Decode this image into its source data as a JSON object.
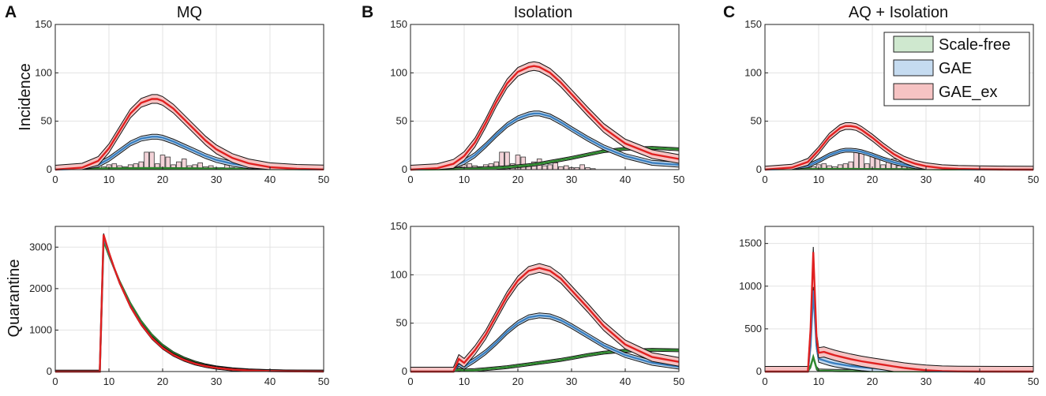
{
  "figure": {
    "panel_letters": [
      "A",
      "B",
      "C"
    ],
    "column_titles": [
      "MQ",
      "Isolation",
      "AQ + Isolation"
    ],
    "row_labels": [
      "Incidence",
      "Quarantine"
    ]
  },
  "colors": {
    "scale_free": "#2e8b2e",
    "scale_free_band": "#cfe8cf",
    "gae": "#3a7fc0",
    "gae_band": "#c5dbf0",
    "gae_ex": "#e02020",
    "gae_ex_band": "#f6c3c3",
    "hist_fill": "#f3d3d8",
    "envelope": "#111111"
  },
  "legend": {
    "entries": [
      "Scale-free",
      "GAE",
      "GAE_ex"
    ],
    "location": "top-right of panel C incidence"
  },
  "chart_data": [
    {
      "id": "A-incidence",
      "type": "line",
      "title": "MQ",
      "panel_label": "A",
      "ylabel": "Incidence",
      "xlim": [
        0,
        50
      ],
      "ylim": [
        0,
        150
      ],
      "xticks": [
        0,
        10,
        20,
        30,
        40,
        50
      ],
      "yticks": [
        0,
        50,
        100,
        150
      ],
      "grid": true,
      "x": [
        0,
        5,
        8,
        10,
        12,
        14,
        16,
        18,
        19,
        20,
        22,
        24,
        26,
        28,
        30,
        33,
        36,
        40,
        45,
        50
      ],
      "series": [
        {
          "name": "Scale-free",
          "values": [
            0.5,
            0.8,
            1,
            1.2,
            1.3,
            1.4,
            1.5,
            1.5,
            1.5,
            1.5,
            1.4,
            1.3,
            1.2,
            1.1,
            1,
            0.9,
            0.7,
            0.5,
            0.3,
            0.2
          ],
          "band": 0.6
        },
        {
          "name": "GAE",
          "values": [
            0,
            1,
            5,
            11,
            19,
            27,
            32,
            34,
            34,
            33,
            29,
            24,
            19,
            14,
            10,
            6,
            3.5,
            1.5,
            0.5,
            0.2
          ],
          "band": 2.5
        },
        {
          "name": "GAE_ex",
          "values": [
            0,
            2,
            9,
            22,
            40,
            58,
            69,
            73,
            73,
            71,
            63,
            52,
            41,
            30,
            21,
            12,
            6.5,
            2.5,
            0.8,
            0.2
          ],
          "band": 4.5
        }
      ],
      "histogram": [
        {
          "x": 6,
          "v": 1
        },
        {
          "x": 7,
          "v": 1
        },
        {
          "x": 8,
          "v": 2
        },
        {
          "x": 9,
          "v": 3
        },
        {
          "x": 10,
          "v": 5
        },
        {
          "x": 11,
          "v": 6
        },
        {
          "x": 12,
          "v": 4
        },
        {
          "x": 13,
          "v": 3
        },
        {
          "x": 14,
          "v": 5
        },
        {
          "x": 15,
          "v": 6
        },
        {
          "x": 16,
          "v": 8
        },
        {
          "x": 17,
          "v": 18
        },
        {
          "x": 18,
          "v": 18
        },
        {
          "x": 19,
          "v": 6
        },
        {
          "x": 20,
          "v": 15
        },
        {
          "x": 21,
          "v": 13
        },
        {
          "x": 22,
          "v": 5
        },
        {
          "x": 23,
          "v": 8
        },
        {
          "x": 24,
          "v": 11
        },
        {
          "x": 25,
          "v": 4
        },
        {
          "x": 26,
          "v": 5
        },
        {
          "x": 27,
          "v": 7
        },
        {
          "x": 28,
          "v": 3
        },
        {
          "x": 29,
          "v": 4
        },
        {
          "x": 30,
          "v": 2
        },
        {
          "x": 31,
          "v": 2
        },
        {
          "x": 32,
          "v": 5
        },
        {
          "x": 33,
          "v": 2
        },
        {
          "x": 34,
          "v": 1
        }
      ]
    },
    {
      "id": "B-incidence",
      "type": "line",
      "title": "Isolation",
      "panel_label": "B",
      "ylabel": "",
      "xlim": [
        0,
        50
      ],
      "ylim": [
        0,
        150
      ],
      "xticks": [
        0,
        10,
        20,
        30,
        40,
        50
      ],
      "yticks": [
        0,
        50,
        100,
        150
      ],
      "grid": true,
      "x": [
        0,
        5,
        8,
        10,
        12,
        14,
        16,
        18,
        20,
        22,
        23,
        24,
        26,
        28,
        30,
        33,
        36,
        40,
        45,
        50
      ],
      "series": [
        {
          "name": "Scale-free",
          "values": [
            0,
            0.2,
            0.4,
            0.6,
            0.9,
            1.3,
            1.8,
            2.5,
            3.5,
            4.5,
            5.2,
            6,
            8,
            10,
            12,
            15.5,
            19,
            21.5,
            22.5,
            21
          ],
          "band": 1.5
        },
        {
          "name": "GAE",
          "values": [
            0,
            1,
            4,
            8,
            15,
            25,
            36,
            46,
            53,
            57,
            58,
            58,
            55,
            49,
            42,
            32,
            23,
            14,
            7,
            5
          ],
          "band": 2.5
        },
        {
          "name": "GAE_ex",
          "values": [
            0,
            1.5,
            6,
            14,
            28,
            48,
            70,
            89,
            101,
            106,
            107,
            106,
            100,
            90,
            78,
            60,
            43,
            27,
            16,
            11
          ],
          "band": 4.5
        }
      ],
      "histogram": [
        {
          "x": 6,
          "v": 1
        },
        {
          "x": 7,
          "v": 1
        },
        {
          "x": 8,
          "v": 2
        },
        {
          "x": 9,
          "v": 3
        },
        {
          "x": 10,
          "v": 5
        },
        {
          "x": 11,
          "v": 6
        },
        {
          "x": 12,
          "v": 4
        },
        {
          "x": 13,
          "v": 3
        },
        {
          "x": 14,
          "v": 5
        },
        {
          "x": 15,
          "v": 6
        },
        {
          "x": 16,
          "v": 8
        },
        {
          "x": 17,
          "v": 18
        },
        {
          "x": 18,
          "v": 18
        },
        {
          "x": 19,
          "v": 6
        },
        {
          "x": 20,
          "v": 15
        },
        {
          "x": 21,
          "v": 13
        },
        {
          "x": 22,
          "v": 5
        },
        {
          "x": 23,
          "v": 8
        },
        {
          "x": 24,
          "v": 11
        },
        {
          "x": 25,
          "v": 4
        },
        {
          "x": 26,
          "v": 5
        },
        {
          "x": 27,
          "v": 7
        },
        {
          "x": 28,
          "v": 3
        },
        {
          "x": 29,
          "v": 4
        },
        {
          "x": 30,
          "v": 2
        },
        {
          "x": 31,
          "v": 2
        },
        {
          "x": 32,
          "v": 5
        },
        {
          "x": 33,
          "v": 2
        },
        {
          "x": 34,
          "v": 1
        }
      ]
    },
    {
      "id": "C-incidence",
      "type": "line",
      "title": "AQ + Isolation",
      "panel_label": "C",
      "ylabel": "",
      "xlim": [
        0,
        50
      ],
      "ylim": [
        0,
        150
      ],
      "xticks": [
        0,
        10,
        20,
        30,
        40,
        50
      ],
      "yticks": [
        0,
        50,
        100,
        150
      ],
      "grid": true,
      "legend": true,
      "x": [
        0,
        5,
        8,
        10,
        12,
        14,
        15,
        16,
        17,
        18,
        20,
        22,
        24,
        26,
        28,
        30,
        33,
        36,
        40,
        45,
        50
      ],
      "series": [
        {
          "name": "Scale-free",
          "values": [
            0.3,
            0.5,
            0.6,
            0.7,
            0.7,
            0.7,
            0.7,
            0.7,
            0.7,
            0.6,
            0.6,
            0.5,
            0.5,
            0.4,
            0.3,
            0.3,
            0.2,
            0.2,
            0.1,
            0.1,
            0.1
          ],
          "band": 0.5
        },
        {
          "name": "GAE",
          "values": [
            0,
            1,
            4,
            9,
            15,
            19,
            20,
            20,
            19.5,
            18.5,
            15,
            11,
            7.5,
            5,
            3,
            2,
            1,
            0.5,
            0.2,
            0.1,
            0
          ],
          "band": 2
        },
        {
          "name": "GAE_ex",
          "values": [
            0,
            2,
            8,
            20,
            34,
            43,
            45,
            45,
            44,
            41,
            33,
            24,
            16,
            10,
            6,
            3.5,
            1.5,
            0.7,
            0.3,
            0.1,
            0
          ],
          "band": 3.5
        }
      ],
      "histogram": [
        {
          "x": 6,
          "v": 1
        },
        {
          "x": 7,
          "v": 1
        },
        {
          "x": 8,
          "v": 2
        },
        {
          "x": 9,
          "v": 3
        },
        {
          "x": 10,
          "v": 5
        },
        {
          "x": 11,
          "v": 6
        },
        {
          "x": 12,
          "v": 4
        },
        {
          "x": 13,
          "v": 3
        },
        {
          "x": 14,
          "v": 5
        },
        {
          "x": 15,
          "v": 6
        },
        {
          "x": 16,
          "v": 8
        },
        {
          "x": 17,
          "v": 18
        },
        {
          "x": 18,
          "v": 18
        },
        {
          "x": 19,
          "v": 6
        },
        {
          "x": 20,
          "v": 15
        },
        {
          "x": 21,
          "v": 13
        },
        {
          "x": 22,
          "v": 5
        },
        {
          "x": 23,
          "v": 8
        },
        {
          "x": 24,
          "v": 11
        },
        {
          "x": 25,
          "v": 4
        },
        {
          "x": 26,
          "v": 5
        },
        {
          "x": 27,
          "v": 7
        },
        {
          "x": 28,
          "v": 3
        },
        {
          "x": 29,
          "v": 4
        },
        {
          "x": 30,
          "v": 2
        },
        {
          "x": 31,
          "v": 2
        },
        {
          "x": 32,
          "v": 5
        },
        {
          "x": 33,
          "v": 2
        },
        {
          "x": 34,
          "v": 1
        }
      ]
    },
    {
      "id": "A-quarantine",
      "type": "line",
      "title": "",
      "panel_label": "",
      "ylabel": "Quarantine",
      "xlim": [
        0,
        50
      ],
      "ylim": [
        0,
        3500
      ],
      "xticks": [
        0,
        10,
        20,
        30,
        40,
        50
      ],
      "yticks": [
        0,
        1000,
        2000,
        3000
      ],
      "grid": true,
      "x": [
        0,
        8,
        8.3,
        9,
        10,
        11,
        12,
        14,
        16,
        18,
        20,
        22,
        24,
        26,
        28,
        30,
        33,
        36,
        40,
        45,
        50
      ],
      "series": [
        {
          "name": "Scale-free",
          "values": [
            0,
            0,
            0,
            3150,
            2800,
            2480,
            2170,
            1640,
            1210,
            880,
            630,
            450,
            320,
            225,
            155,
            105,
            60,
            35,
            15,
            5,
            2
          ],
          "band": 30
        },
        {
          "name": "GAE",
          "values": [
            0,
            0,
            0,
            3250,
            2850,
            2480,
            2140,
            1580,
            1150,
            820,
            580,
            410,
            285,
            195,
            135,
            90,
            50,
            28,
            12,
            4,
            1
          ],
          "band": 30
        },
        {
          "name": "GAE_ex",
          "values": [
            0,
            0,
            0,
            3300,
            2870,
            2490,
            2140,
            1570,
            1140,
            810,
            570,
            400,
            280,
            190,
            130,
            88,
            48,
            26,
            11,
            4,
            1
          ],
          "band": 30
        }
      ]
    },
    {
      "id": "B-quarantine",
      "type": "line",
      "title": "",
      "panel_label": "",
      "ylabel": "",
      "xlim": [
        0,
        50
      ],
      "ylim": [
        0,
        150
      ],
      "xticks": [
        0,
        10,
        20,
        30,
        40,
        50
      ],
      "yticks": [
        0,
        50,
        100,
        150
      ],
      "grid": true,
      "x": [
        0,
        8,
        9,
        10,
        12,
        14,
        16,
        18,
        20,
        22,
        24,
        26,
        28,
        30,
        33,
        36,
        40,
        45,
        50
      ],
      "series": [
        {
          "name": "Scale-free",
          "values": [
            0,
            0,
            2,
            1,
            1.5,
            2.5,
            3.5,
            4.5,
            6,
            7.5,
            9,
            10.5,
            12,
            14,
            17,
            19.5,
            21.5,
            22.5,
            22
          ],
          "band": 1.5
        },
        {
          "name": "GAE",
          "values": [
            0,
            0,
            8,
            5,
            12,
            20,
            30,
            41,
            50,
            56,
            58,
            57,
            53,
            47,
            37,
            27,
            17,
            9,
            5
          ],
          "band": 2.5
        },
        {
          "name": "GAE_ex",
          "values": [
            0,
            0,
            13,
            9,
            22,
            38,
            58,
            78,
            94,
            104,
            107,
            104,
            96,
            84,
            66,
            47,
            28,
            15,
            10
          ],
          "band": 4.5
        }
      ]
    },
    {
      "id": "C-quarantine",
      "type": "line",
      "title": "",
      "panel_label": "",
      "ylabel": "",
      "xlim": [
        0,
        50
      ],
      "ylim": [
        0,
        1700
      ],
      "xticks": [
        0,
        10,
        20,
        30,
        40,
        50
      ],
      "yticks": [
        0,
        500,
        1000,
        1500
      ],
      "grid": true,
      "x": [
        0,
        8,
        8.5,
        9,
        9.6,
        10,
        11,
        12,
        13,
        14,
        15,
        16,
        18,
        20,
        22,
        24,
        26,
        28,
        30,
        33,
        36,
        40,
        45,
        50
      ],
      "series": [
        {
          "name": "Scale-free",
          "values": [
            0,
            0,
            60,
            170,
            40,
            10,
            8,
            7,
            6,
            5,
            5,
            4,
            3,
            3,
            2,
            2,
            2,
            2,
            1,
            1,
            1,
            0,
            0,
            0
          ],
          "band": 20
        },
        {
          "name": "GAE",
          "values": [
            0,
            0,
            300,
            950,
            300,
            150,
            130,
            110,
            95,
            85,
            75,
            65,
            50,
            40,
            30,
            20,
            14,
            9,
            5,
            2,
            1,
            0,
            0,
            0
          ],
          "band": 40
        },
        {
          "name": "GAE_ex",
          "values": [
            0,
            0,
            500,
            1400,
            400,
            220,
            230,
            210,
            190,
            175,
            160,
            145,
            120,
            100,
            80,
            60,
            42,
            28,
            16,
            6,
            2,
            1,
            0,
            0
          ],
          "band": 60
        }
      ]
    }
  ]
}
